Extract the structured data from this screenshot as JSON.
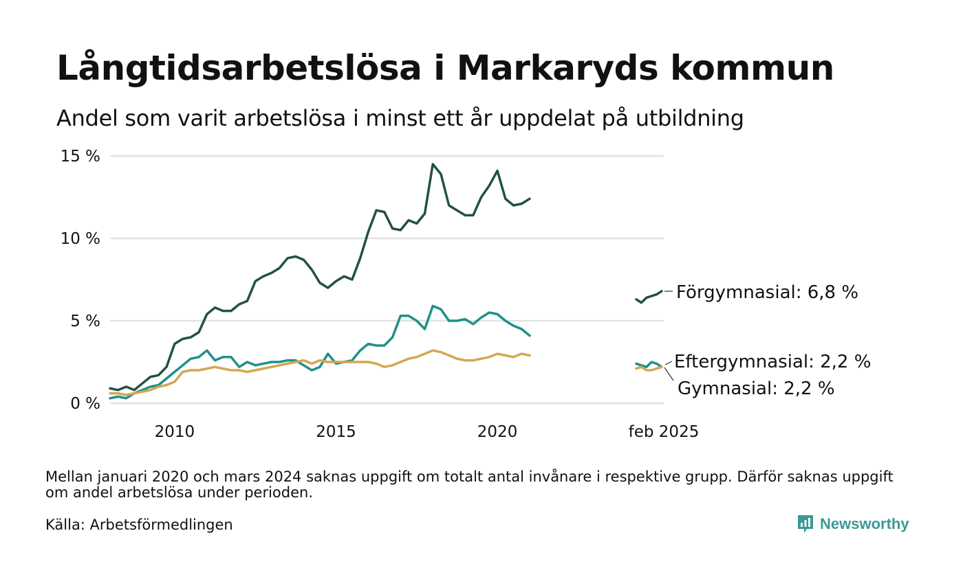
{
  "title": "Långtidsarbetslösa i Markaryds kommun",
  "subtitle": "Andel som varit arbetslösa i minst ett år uppdelat på utbildning",
  "footnote": "Mellan januari 2020 och mars 2024 saknas uppgift om totalt antal invånare i respektive grupp. Därför saknas uppgift om andel arbetslösa under perioden.",
  "source": "Källa: Arbetsförmedlingen",
  "brand": {
    "name": "Newsworthy",
    "color": "#3a9a95"
  },
  "chart_data": {
    "type": "line",
    "title": "",
    "xlabel": "",
    "ylabel": "",
    "ylim": [
      0,
      15
    ],
    "y_ticks": [
      0,
      5,
      10,
      15
    ],
    "y_tick_labels": [
      "0 %",
      "5 %",
      "10 %",
      "15 %"
    ],
    "x_ticks": [
      2010,
      2015,
      2020
    ],
    "x_tick_labels": [
      "2010",
      "2015",
      "2020"
    ],
    "latest_label": "feb 2025",
    "grid": "horizontal",
    "series": [
      {
        "name": "Förgymnasial",
        "end_label": "Förgymnasial: 6,8 %",
        "color": "#245048",
        "segments": [
          {
            "x": [
              "2008-01",
              "2008-04",
              "2008-07",
              "2008-10",
              "2009-01",
              "2009-04",
              "2009-07",
              "2009-10",
              "2010-01",
              "2010-04",
              "2010-07",
              "2010-10",
              "2011-01",
              "2011-04",
              "2011-07",
              "2011-10",
              "2012-01",
              "2012-04",
              "2012-07",
              "2012-10",
              "2013-01",
              "2013-04",
              "2013-07",
              "2013-10",
              "2014-01",
              "2014-04",
              "2014-07",
              "2014-10",
              "2015-01",
              "2015-04",
              "2015-07",
              "2015-10",
              "2016-01",
              "2016-04",
              "2016-07",
              "2016-10",
              "2017-01",
              "2017-04",
              "2017-07",
              "2017-10",
              "2018-01",
              "2018-04",
              "2018-07",
              "2018-10",
              "2019-01",
              "2019-04",
              "2019-07",
              "2019-10",
              "2020-01",
              "2020-04",
              "2020-07",
              "2020-10",
              "2021-01"
            ],
            "y": [
              0.9,
              0.8,
              1.0,
              0.8,
              1.2,
              1.6,
              1.7,
              2.2,
              3.6,
              3.9,
              4.0,
              4.3,
              5.4,
              5.8,
              5.6,
              5.6,
              6.0,
              6.2,
              7.4,
              7.7,
              7.9,
              8.2,
              8.8,
              8.9,
              8.7,
              8.1,
              7.3,
              7.0,
              7.4,
              7.7,
              7.5,
              8.8,
              10.4,
              11.7,
              11.6,
              10.6,
              10.5,
              11.1,
              10.9,
              11.5,
              14.5,
              13.9,
              12.0,
              11.7,
              11.4,
              11.4,
              12.5,
              13.2,
              14.1,
              12.4,
              12.0,
              12.1,
              12.4
            ]
          },
          {
            "x": [
              "2024-04",
              "2024-06",
              "2024-08",
              "2024-10",
              "2024-12",
              "2025-02"
            ],
            "y": [
              6.3,
              6.1,
              6.4,
              6.5,
              6.6,
              6.8
            ]
          }
        ]
      },
      {
        "name": "Eftergymnasial",
        "end_label": "Eftergymnasial: 2,2 %",
        "color": "#1f9188",
        "segments": [
          {
            "x": [
              "2008-01",
              "2008-04",
              "2008-07",
              "2008-10",
              "2009-01",
              "2009-04",
              "2009-07",
              "2009-10",
              "2010-01",
              "2010-04",
              "2010-07",
              "2010-10",
              "2011-01",
              "2011-04",
              "2011-07",
              "2011-10",
              "2012-01",
              "2012-04",
              "2012-07",
              "2012-10",
              "2013-01",
              "2013-04",
              "2013-07",
              "2013-10",
              "2014-01",
              "2014-04",
              "2014-07",
              "2014-10",
              "2015-01",
              "2015-04",
              "2015-07",
              "2015-10",
              "2016-01",
              "2016-04",
              "2016-07",
              "2016-10",
              "2017-01",
              "2017-04",
              "2017-07",
              "2017-10",
              "2018-01",
              "2018-04",
              "2018-07",
              "2018-10",
              "2019-01",
              "2019-04",
              "2019-07",
              "2019-10",
              "2020-01",
              "2020-04",
              "2020-07",
              "2020-10",
              "2021-01"
            ],
            "y": [
              0.3,
              0.4,
              0.3,
              0.6,
              0.8,
              1.0,
              1.1,
              1.5,
              1.9,
              2.3,
              2.7,
              2.8,
              3.2,
              2.6,
              2.8,
              2.8,
              2.2,
              2.5,
              2.3,
              2.4,
              2.5,
              2.5,
              2.6,
              2.6,
              2.3,
              2.0,
              2.2,
              3.0,
              2.4,
              2.5,
              2.6,
              3.2,
              3.6,
              3.5,
              3.5,
              4.0,
              5.3,
              5.3,
              5.0,
              4.5,
              5.9,
              5.7,
              5.0,
              5.0,
              5.1,
              4.8,
              5.2,
              5.5,
              5.4,
              5.0,
              4.7,
              4.5,
              4.1
            ]
          },
          {
            "x": [
              "2024-04",
              "2024-06",
              "2024-08",
              "2024-10",
              "2024-12",
              "2025-02"
            ],
            "y": [
              2.4,
              2.3,
              2.2,
              2.5,
              2.4,
              2.2
            ]
          }
        ]
      },
      {
        "name": "Gymnasial",
        "end_label": "Gymnasial: 2,2 %",
        "color": "#d6a553",
        "segments": [
          {
            "x": [
              "2008-01",
              "2008-04",
              "2008-07",
              "2008-10",
              "2009-01",
              "2009-04",
              "2009-07",
              "2009-10",
              "2010-01",
              "2010-04",
              "2010-07",
              "2010-10",
              "2011-01",
              "2011-04",
              "2011-07",
              "2011-10",
              "2012-01",
              "2012-04",
              "2012-07",
              "2012-10",
              "2013-01",
              "2013-04",
              "2013-07",
              "2013-10",
              "2014-01",
              "2014-04",
              "2014-07",
              "2014-10",
              "2015-01",
              "2015-04",
              "2015-07",
              "2015-10",
              "2016-01",
              "2016-04",
              "2016-07",
              "2016-10",
              "2017-01",
              "2017-04",
              "2017-07",
              "2017-10",
              "2018-01",
              "2018-04",
              "2018-07",
              "2018-10",
              "2019-01",
              "2019-04",
              "2019-07",
              "2019-10",
              "2020-01",
              "2020-04",
              "2020-07",
              "2020-10",
              "2021-01"
            ],
            "y": [
              0.6,
              0.6,
              0.5,
              0.6,
              0.7,
              0.8,
              1.0,
              1.1,
              1.3,
              1.9,
              2.0,
              2.0,
              2.1,
              2.2,
              2.1,
              2.0,
              2.0,
              1.9,
              2.0,
              2.1,
              2.2,
              2.3,
              2.4,
              2.5,
              2.6,
              2.4,
              2.6,
              2.5,
              2.5,
              2.5,
              2.5,
              2.5,
              2.5,
              2.4,
              2.2,
              2.3,
              2.5,
              2.7,
              2.8,
              3.0,
              3.2,
              3.1,
              2.9,
              2.7,
              2.6,
              2.6,
              2.7,
              2.8,
              3.0,
              2.9,
              2.8,
              3.0,
              2.9
            ]
          },
          {
            "x": [
              "2024-04",
              "2024-06",
              "2024-08",
              "2024-10",
              "2024-12",
              "2025-02"
            ],
            "y": [
              2.1,
              2.2,
              2.0,
              2.0,
              2.1,
              2.2
            ]
          }
        ]
      }
    ]
  }
}
